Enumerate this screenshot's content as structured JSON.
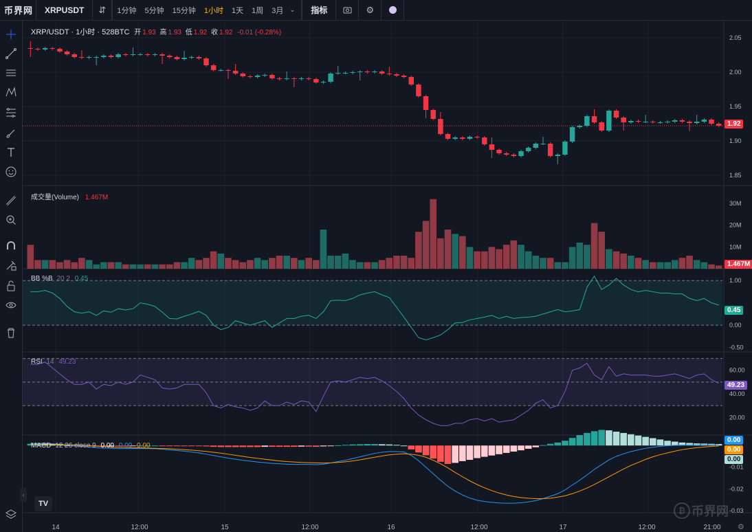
{
  "app": {
    "logo": "币界网",
    "symbol": "XRPUSDT"
  },
  "toolbar": {
    "intervals": [
      "1分钟",
      "5分钟",
      "15分钟",
      "1小时",
      "1天",
      "1周",
      "3月"
    ],
    "active_interval": "1小时",
    "indicators_label": "指标",
    "icons": [
      "candle-style-icon",
      "camera-icon",
      "gear-icon",
      "theme-icon"
    ]
  },
  "left_tools": [
    "crosshair-icon",
    "trendline-icon",
    "horizontal-lines-icon",
    "pattern-icon",
    "fib-icon",
    "brush-icon",
    "text-icon",
    "emoji-icon",
    "ruler-icon",
    "zoom-icon",
    "magnet-icon",
    "lock-draw-icon",
    "lock-icon",
    "eye-icon",
    "trash-icon",
    "layers-icon"
  ],
  "main_legend": {
    "title": "XRP/USDT · 1小时 · 528BTC",
    "open_label": "开",
    "open": "1.93",
    "high_label": "高",
    "high": "1.93",
    "low_label": "低",
    "low": "1.92",
    "close_label": "收",
    "close": "1.92",
    "change": "-0.01 (-0.28%)"
  },
  "volume_legend": {
    "title": "成交量(Volume)",
    "value": "1.467M"
  },
  "bb_legend": {
    "title": "BB %B",
    "params": "20 2",
    "value": "0.45"
  },
  "rsi_legend": {
    "title": "RSI",
    "params": "14",
    "value": "49.23"
  },
  "macd_legend": {
    "title": "MACD",
    "params": "12 26 close 9",
    "v1": "0.00",
    "v2": "0.00",
    "v3": "0.00"
  },
  "price_axis": {
    "ticks": [
      "2.05",
      "2.00",
      "1.95",
      "1.90",
      "1.85"
    ],
    "current": "1.92"
  },
  "volume_axis": {
    "ticks": [
      "30M",
      "20M",
      "10M"
    ],
    "current": "1.467M"
  },
  "bb_axis": {
    "ticks": [
      "1.00",
      "0.00",
      "-0.50"
    ],
    "current": "0.45"
  },
  "rsi_axis": {
    "ticks": [
      "60.00",
      "40.00",
      "20.00"
    ],
    "current": "49.23"
  },
  "macd_axis": {
    "ticks": [
      "-0.01",
      "-0.02",
      "-0.03"
    ],
    "tags": [
      "0.00",
      "0.00",
      "0.00"
    ]
  },
  "time_axis": {
    "labels": [
      "14",
      "12:00",
      "15",
      "12:00",
      "16",
      "12:00",
      "17",
      "12:00",
      "21:00"
    ]
  },
  "watermark": "币界网",
  "tv_logo": "TV",
  "colors": {
    "up": "#26a69a",
    "down": "#f23645",
    "bg": "#131722",
    "grid": "#1e222d",
    "bb": "#22ab94",
    "rsi": "#7e57c2",
    "macd": "#2196f3",
    "signal": "#ff9800"
  },
  "chart_data": {
    "type": "candlestick",
    "candles_close": [
      2.034,
      2.033,
      2.035,
      2.034,
      2.03,
      2.026,
      2.022,
      2.021,
      2.022,
      2.022,
      2.024,
      2.022,
      2.026,
      2.025,
      2.026,
      2.026,
      2.025,
      2.026,
      2.024,
      2.022,
      2.019,
      2.021,
      2.022,
      2.02,
      2.01,
      2.003,
      2.003,
      2.002,
      1.998,
      1.994,
      1.993,
      1.995,
      1.996,
      1.991,
      1.99,
      1.991,
      1.99,
      1.991,
      1.99,
      1.985,
      1.986,
      1.998,
      1.999,
      1.999,
      2.0,
      2.001,
      2.0,
      2.001,
      1.998,
      1.997,
      1.995,
      1.993,
      1.982,
      1.965,
      1.945,
      1.932,
      1.91,
      1.903,
      1.905,
      1.903,
      1.906,
      1.905,
      1.895,
      1.887,
      1.882,
      1.88,
      1.878,
      1.885,
      1.89,
      1.896,
      1.896,
      1.878,
      1.88,
      1.899,
      1.92,
      1.922,
      1.936,
      1.927,
      1.915,
      1.944,
      1.934,
      1.927,
      1.929,
      1.928,
      1.928,
      1.927,
      1.927,
      1.928,
      1.93,
      1.928,
      1.926,
      1.928,
      1.931,
      1.925,
      1.922
    ],
    "volume_M": [
      11,
      4,
      4,
      4,
      3,
      4,
      3,
      5,
      4,
      2,
      3,
      3,
      3,
      2,
      2,
      2,
      2,
      2,
      2,
      2,
      3,
      3,
      5,
      4,
      5,
      8,
      7,
      5,
      4,
      3,
      4,
      5,
      4,
      5,
      6,
      6,
      5,
      4,
      5,
      4,
      18,
      6,
      6,
      7,
      4,
      3,
      3,
      3,
      4,
      5,
      6,
      6,
      5,
      17,
      22,
      32,
      14,
      18,
      16,
      15,
      10,
      8,
      8,
      10,
      9,
      11,
      13,
      11,
      8,
      6,
      5,
      5,
      3,
      3,
      10,
      12,
      11,
      21,
      17,
      9,
      8,
      7,
      6,
      5,
      4,
      3,
      3,
      3,
      4,
      5,
      6,
      4,
      3,
      2,
      1.467
    ],
    "bb_pctb": [
      0.75,
      0.75,
      0.78,
      0.72,
      0.6,
      0.42,
      0.3,
      0.27,
      0.3,
      0.22,
      0.32,
      0.29,
      0.37,
      0.34,
      0.37,
      0.5,
      0.47,
      0.42,
      0.29,
      0.15,
      0.14,
      0.2,
      0.25,
      0.31,
      0.22,
      0.0,
      -0.1,
      -0.05,
      0.1,
      0.05,
      0.0,
      0.05,
      0.1,
      -0.05,
      0.05,
      0.15,
      0.15,
      0.2,
      0.22,
      0.15,
      0.3,
      0.55,
      0.56,
      0.55,
      0.6,
      0.68,
      0.72,
      0.75,
      0.68,
      0.62,
      0.4,
      0.18,
      -0.05,
      -0.28,
      -0.33,
      -0.28,
      -0.22,
      -0.1,
      0.05,
      0.06,
      0.12,
      0.15,
      0.18,
      0.22,
      0.15,
      0.2,
      0.15,
      0.17,
      0.18,
      0.2,
      0.25,
      0.3,
      0.35,
      0.3,
      0.32,
      0.35,
      0.85,
      1.1,
      0.8,
      0.9,
      1.05,
      0.9,
      0.8,
      0.75,
      0.78,
      0.75,
      0.72,
      0.72,
      0.7,
      0.7,
      0.6,
      0.55,
      0.6,
      0.5,
      0.45
    ],
    "rsi": [
      65,
      65,
      67,
      62,
      57,
      52,
      48,
      48,
      50,
      44,
      48,
      47,
      50,
      48,
      50,
      56,
      54,
      52,
      45,
      44,
      45,
      48,
      48,
      48,
      41,
      30,
      28,
      31,
      29,
      28,
      26,
      28,
      34,
      30,
      30,
      33,
      31,
      34,
      33,
      25,
      38,
      50,
      51,
      50,
      52,
      54,
      53,
      54,
      51,
      47,
      42,
      36,
      28,
      22,
      18,
      15,
      13,
      13,
      15,
      15,
      18,
      19,
      17,
      19,
      16,
      17,
      18,
      22,
      26,
      32,
      35,
      28,
      30,
      42,
      60,
      62,
      66,
      56,
      52,
      63,
      55,
      57,
      56,
      56,
      56,
      55,
      55,
      56,
      57,
      55,
      53,
      56,
      57,
      52,
      49
    ],
    "macd_hist": [
      0.0008,
      0.0009,
      0.0008,
      0.0006,
      0.0004,
      0.0001,
      -0.0001,
      -0.0002,
      -0.0002,
      -0.0003,
      -0.0003,
      -0.0002,
      -0.0002,
      -0.0002,
      -0.0001,
      0.0,
      0.0,
      0.0,
      -0.0001,
      -0.0002,
      -0.0003,
      -0.0003,
      -0.0003,
      -0.0003,
      -0.0004,
      -0.0006,
      -0.0007,
      -0.0007,
      -0.0007,
      -0.0007,
      -0.0007,
      -0.0007,
      -0.0006,
      -0.0006,
      -0.0006,
      -0.0006,
      -0.0006,
      -0.0005,
      -0.0005,
      -0.0006,
      -0.0004,
      -0.0001,
      0.0001,
      0.0003,
      0.0005,
      0.0006,
      0.0007,
      0.0007,
      0.0006,
      0.0005,
      0.0003,
      0.0,
      -0.0018,
      -0.0032,
      -0.0045,
      -0.006,
      -0.0075,
      -0.0085,
      -0.008,
      -0.0072,
      -0.0066,
      -0.0058,
      -0.0052,
      -0.0046,
      -0.004,
      -0.0034,
      -0.0028,
      -0.0022,
      -0.0015,
      -0.0008,
      0.0002,
      0.0008,
      0.0014,
      0.0022,
      0.0035,
      0.0048,
      0.0058,
      0.0066,
      0.0072,
      0.007,
      0.0064,
      0.0058,
      0.0052,
      0.0046,
      0.004,
      0.0034,
      0.0028,
      0.0022,
      0.0018,
      0.0014,
      0.0012,
      0.001,
      0.0009,
      0.0008,
      0.0007
    ],
    "macd_line": [
      0.001,
      0.001,
      0.001,
      0.0008,
      0.0006,
      0.0003,
      0.0,
      -0.0004,
      -0.0007,
      -0.001,
      -0.0012,
      -0.0013,
      -0.0014,
      -0.0014,
      -0.0014,
      -0.0014,
      -0.0014,
      -0.0015,
      -0.0017,
      -0.002,
      -0.0023,
      -0.0026,
      -0.003,
      -0.0034,
      -0.004,
      -0.0046,
      -0.0052,
      -0.0058,
      -0.0063,
      -0.0068,
      -0.0072,
      -0.0076,
      -0.0079,
      -0.0082,
      -0.0084,
      -0.0086,
      -0.0087,
      -0.0087,
      -0.0087,
      -0.0088,
      -0.0086,
      -0.008,
      -0.0074,
      -0.0068,
      -0.006,
      -0.0052,
      -0.0044,
      -0.0036,
      -0.0031,
      -0.0028,
      -0.0028,
      -0.003,
      -0.0045,
      -0.007,
      -0.01,
      -0.013,
      -0.016,
      -0.0188,
      -0.021,
      -0.0228,
      -0.0242,
      -0.0252,
      -0.0258,
      -0.0262,
      -0.0265,
      -0.0266,
      -0.0266,
      -0.0264,
      -0.026,
      -0.0254,
      -0.0245,
      -0.0234,
      -0.0222,
      -0.0205,
      -0.0182,
      -0.016,
      -0.0136,
      -0.011,
      -0.0088,
      -0.0066,
      -0.005,
      -0.0038,
      -0.0028,
      -0.002,
      -0.0013,
      -0.0008,
      -0.0004,
      -0.0001,
      0.0001,
      0.0002,
      0.0003,
      0.0004,
      0.0004,
      0.0004,
      0.0003
    ],
    "signal_line": [
      0.0005,
      0.0006,
      0.0006,
      0.0006,
      0.0005,
      0.0004,
      0.0003,
      0.0001,
      -0.0001,
      -0.0003,
      -0.0005,
      -0.0007,
      -0.0008,
      -0.0009,
      -0.001,
      -0.0011,
      -0.0012,
      -0.0013,
      -0.0014,
      -0.0015,
      -0.0017,
      -0.0019,
      -0.0021,
      -0.0024,
      -0.0027,
      -0.0031,
      -0.0035,
      -0.004,
      -0.0045,
      -0.005,
      -0.0055,
      -0.0059,
      -0.0063,
      -0.0067,
      -0.0071,
      -0.0074,
      -0.0076,
      -0.0078,
      -0.0079,
      -0.008,
      -0.0081,
      -0.008,
      -0.0078,
      -0.0075,
      -0.0071,
      -0.0066,
      -0.006,
      -0.0054,
      -0.0048,
      -0.0043,
      -0.004,
      -0.0038,
      -0.004,
      -0.0045,
      -0.0054,
      -0.0068,
      -0.0084,
      -0.0103,
      -0.0124,
      -0.0144,
      -0.0163,
      -0.018,
      -0.0195,
      -0.0208,
      -0.0219,
      -0.0228,
      -0.0235,
      -0.024,
      -0.0243,
      -0.0245,
      -0.0245,
      -0.0243,
      -0.0238,
      -0.0232,
      -0.0222,
      -0.021,
      -0.0196,
      -0.018,
      -0.0162,
      -0.0144,
      -0.0126,
      -0.0108,
      -0.0092,
      -0.0078,
      -0.0064,
      -0.0052,
      -0.0042,
      -0.0034,
      -0.0026,
      -0.0019,
      -0.0014,
      -0.001,
      -0.0007,
      -0.0004,
      -0.0002
    ]
  }
}
